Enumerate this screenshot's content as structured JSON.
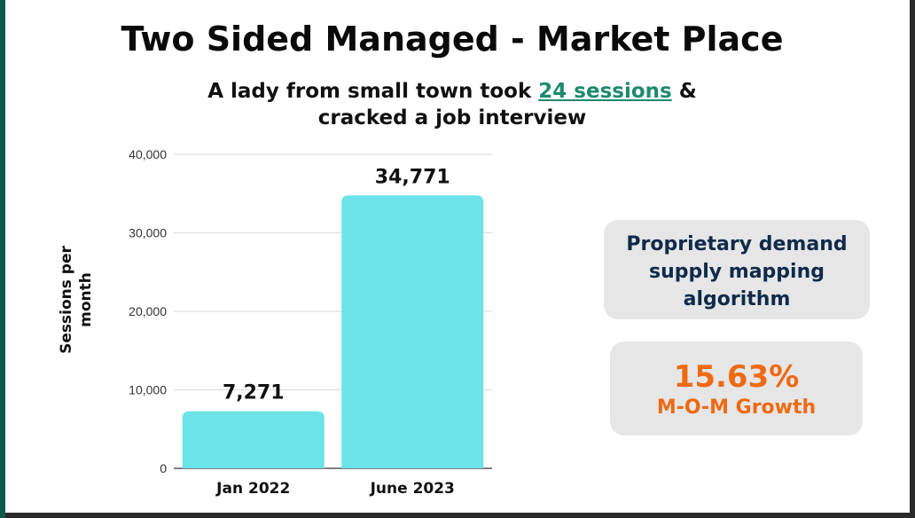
{
  "slide": {
    "title": "Two Sided Managed - Market Place",
    "subtitle_pre": "A lady from small town took ",
    "subtitle_highlight": "24 sessions",
    "subtitle_post": " &",
    "subtitle_line2": "cracked a job interview"
  },
  "cards": {
    "algorithm_line1": "Proprietary demand",
    "algorithm_line2": "supply mapping",
    "algorithm_line3": "algorithm",
    "growth_value": "15.63%",
    "growth_label": "M-O-M Growth"
  },
  "colors": {
    "bar": "#6ce3e8",
    "title": "#0a0a0a",
    "highlight": "#1e8a6e",
    "card_text_dark": "#0f2a4a",
    "card_text_orange": "#ee6a12",
    "card_bg": "#e6e6e6"
  },
  "chart_data": {
    "type": "bar",
    "categories": [
      "Jan 2022",
      "June 2023"
    ],
    "values": [
      7271,
      34771
    ],
    "value_labels": [
      "7,271",
      "34,771"
    ],
    "ylabel_lines": [
      "Sessions per",
      "month"
    ],
    "ylim": [
      0,
      40000
    ],
    "yticks": [
      0,
      10000,
      20000,
      30000,
      40000
    ],
    "ytick_labels": [
      "0",
      "10,000",
      "20,000",
      "30,000",
      "40,000"
    ],
    "grid": true,
    "legend": "none"
  }
}
